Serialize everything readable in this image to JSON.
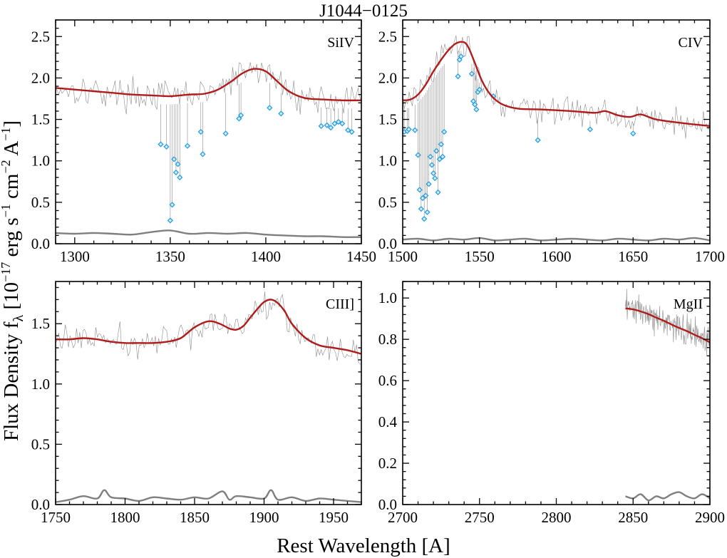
{
  "title": "J1044−0125",
  "xlabel": "Rest Wavelength [A]",
  "ylabel": {
    "main": "Flux Density f",
    "sub": "λ",
    "bracket": " [10",
    "exp1": "−17",
    "unit1": " erg s",
    "exp2": "−1",
    "unit2": " cm",
    "exp3": "−2",
    "unit3": " A",
    "exp4": "−1",
    "close": "]"
  },
  "colors": {
    "raw_spectrum": "#8c8c8c",
    "fit": "#b01c1c",
    "error": "#7f7f7f",
    "masked_points": "#2a9fe0"
  },
  "chart_data": [
    {
      "panel": "SiIV",
      "type": "line",
      "label": "SiIV",
      "xlim": [
        1290,
        1450
      ],
      "ylim": [
        0,
        2.7
      ],
      "xticks": [
        1300,
        1350,
        1400,
        1450
      ],
      "yticks": [
        0.0,
        0.5,
        1.0,
        1.5,
        2.0,
        2.5
      ],
      "xtick_labels": [
        "1300",
        "1350",
        "1400",
        "1450"
      ],
      "ytick_labels": [
        "0.0",
        "0.5",
        "1.0",
        "1.5",
        "2.0",
        "2.5"
      ],
      "fit": {
        "x": [
          1290,
          1300,
          1310,
          1320,
          1330,
          1340,
          1350,
          1360,
          1368,
          1375,
          1382,
          1388,
          1394,
          1400,
          1406,
          1412,
          1420,
          1430,
          1440,
          1450
        ],
        "y": [
          1.88,
          1.86,
          1.84,
          1.82,
          1.8,
          1.79,
          1.78,
          1.8,
          1.81,
          1.86,
          1.96,
          2.06,
          2.11,
          2.08,
          1.96,
          1.84,
          1.76,
          1.74,
          1.73,
          1.73
        ]
      },
      "error": {
        "x": [
          1290,
          1300,
          1310,
          1320,
          1330,
          1340,
          1350,
          1360,
          1370,
          1380,
          1390,
          1400,
          1410,
          1420,
          1430,
          1440,
          1450
        ],
        "y": [
          0.13,
          0.12,
          0.13,
          0.12,
          0.11,
          0.14,
          0.16,
          0.12,
          0.13,
          0.12,
          0.13,
          0.11,
          0.1,
          0.09,
          0.09,
          0.08,
          0.08
        ]
      },
      "masked_points": {
        "x": [
          1345,
          1348,
          1350,
          1351,
          1352,
          1353,
          1354,
          1355,
          1359,
          1366,
          1367,
          1379,
          1386,
          1387,
          1402,
          1408,
          1429,
          1432,
          1434,
          1436,
          1438,
          1440,
          1443,
          1445
        ],
        "y": [
          1.2,
          1.17,
          0.28,
          0.47,
          1.02,
          0.86,
          0.96,
          0.8,
          1.18,
          1.35,
          1.08,
          1.33,
          1.51,
          1.55,
          1.64,
          1.57,
          1.42,
          1.43,
          1.4,
          1.45,
          1.47,
          1.45,
          1.37,
          1.35
        ]
      }
    },
    {
      "panel": "CIV",
      "type": "line",
      "label": "CIV",
      "xlim": [
        1500,
        1700
      ],
      "ylim": [
        0,
        2.7
      ],
      "xticks": [
        1500,
        1550,
        1600,
        1650,
        1700
      ],
      "yticks": [
        0.0,
        0.5,
        1.0,
        1.5,
        2.0,
        2.5
      ],
      "xtick_labels": [
        "1500",
        "1550",
        "1600",
        "1650",
        "1700"
      ],
      "ytick_labels": [
        "0.0",
        "0.5",
        "1.0",
        "1.5",
        "2.0",
        "2.5"
      ],
      "fit": {
        "x": [
          1500,
          1505,
          1510,
          1515,
          1520,
          1525,
          1530,
          1535,
          1540,
          1543,
          1547,
          1552,
          1558,
          1565,
          1575,
          1590,
          1610,
          1625,
          1632,
          1640,
          1648,
          1655,
          1665,
          1680,
          1700
        ],
        "y": [
          1.73,
          1.74,
          1.8,
          1.92,
          2.08,
          2.22,
          2.34,
          2.42,
          2.43,
          2.36,
          2.18,
          1.95,
          1.78,
          1.68,
          1.63,
          1.62,
          1.6,
          1.58,
          1.6,
          1.55,
          1.53,
          1.56,
          1.5,
          1.46,
          1.42
        ]
      },
      "error": {
        "x": [
          1500,
          1510,
          1520,
          1530,
          1540,
          1550,
          1560,
          1570,
          1580,
          1590,
          1600,
          1610,
          1620,
          1630,
          1640,
          1650,
          1660,
          1670,
          1680,
          1690,
          1700
        ],
        "y": [
          0.05,
          0.06,
          0.04,
          0.06,
          0.05,
          0.07,
          0.04,
          0.05,
          0.06,
          0.04,
          0.05,
          0.06,
          0.05,
          0.04,
          0.06,
          0.05,
          0.04,
          0.06,
          0.05,
          0.07,
          0.04
        ]
      },
      "masked_points": {
        "x": [
          1501,
          1503,
          1504,
          1508,
          1510,
          1511,
          1512,
          1513,
          1514,
          1515,
          1516,
          1517,
          1518,
          1519,
          1520,
          1521,
          1522,
          1523,
          1524,
          1525,
          1526,
          1527,
          1536,
          1537,
          1538,
          1545,
          1546,
          1547,
          1548,
          1549,
          1550,
          1559,
          1588,
          1622,
          1650
        ],
        "y": [
          1.35,
          1.36,
          1.38,
          1.37,
          1.07,
          0.65,
          0.42,
          0.55,
          0.3,
          0.58,
          0.38,
          0.72,
          1.05,
          0.95,
          0.85,
          0.79,
          1.12,
          0.62,
          1.02,
          1.2,
          1.05,
          1.35,
          2.02,
          2.22,
          2.26,
          2.05,
          1.72,
          1.68,
          1.62,
          1.83,
          1.86,
          1.78,
          1.25,
          1.38,
          1.33
        ]
      }
    },
    {
      "panel": "CIII]",
      "type": "line",
      "label": "CIII]",
      "xlim": [
        1750,
        1970
      ],
      "ylim": [
        0,
        1.85
      ],
      "xticks": [
        1750,
        1800,
        1850,
        1900,
        1950
      ],
      "yticks": [
        0.0,
        0.5,
        1.0,
        1.5
      ],
      "xtick_labels": [
        "1750",
        "1800",
        "1850",
        "1900",
        "1950"
      ],
      "ytick_labels": [
        "0.0",
        "0.5",
        "1.0",
        "1.5"
      ],
      "fit": {
        "x": [
          1750,
          1760,
          1770,
          1780,
          1790,
          1800,
          1810,
          1820,
          1830,
          1840,
          1850,
          1860,
          1868,
          1875,
          1880,
          1885,
          1890,
          1895,
          1900,
          1905,
          1910,
          1915,
          1920,
          1930,
          1940,
          1950,
          1960,
          1970
        ],
        "y": [
          1.37,
          1.37,
          1.38,
          1.37,
          1.35,
          1.34,
          1.34,
          1.34,
          1.35,
          1.38,
          1.47,
          1.52,
          1.5,
          1.46,
          1.45,
          1.48,
          1.55,
          1.62,
          1.68,
          1.7,
          1.67,
          1.6,
          1.5,
          1.38,
          1.32,
          1.3,
          1.28,
          1.25
        ]
      },
      "error": {
        "x": [
          1750,
          1760,
          1770,
          1780,
          1785,
          1790,
          1800,
          1810,
          1820,
          1830,
          1840,
          1850,
          1860,
          1870,
          1875,
          1880,
          1890,
          1900,
          1905,
          1910,
          1920,
          1930,
          1940,
          1950,
          1960,
          1970
        ],
        "y": [
          0.02,
          0.04,
          0.07,
          0.05,
          0.12,
          0.06,
          0.05,
          0.03,
          0.06,
          0.05,
          0.04,
          0.06,
          0.05,
          0.11,
          0.04,
          0.07,
          0.06,
          0.05,
          0.12,
          0.04,
          0.06,
          0.03,
          0.05,
          0.04,
          0.03,
          0.02
        ]
      }
    },
    {
      "panel": "MgII",
      "type": "line",
      "label": "MgII",
      "xlim": [
        2700,
        2900
      ],
      "ylim": [
        0,
        1.08
      ],
      "xticks": [
        2700,
        2750,
        2800,
        2850,
        2900
      ],
      "yticks": [
        0.0,
        0.2,
        0.4,
        0.6,
        0.8,
        1.0
      ],
      "xtick_labels": [
        "2700",
        "2750",
        "2800",
        "2850",
        "2900"
      ],
      "ytick_labels": [
        "0.0",
        "0.2",
        "0.4",
        "0.6",
        "0.8",
        "1.0"
      ],
      "fit": {
        "x": [
          2845,
          2850,
          2855,
          2860,
          2865,
          2870,
          2875,
          2880,
          2885,
          2890,
          2895,
          2900
        ],
        "y": [
          0.95,
          0.945,
          0.935,
          0.922,
          0.905,
          0.89,
          0.872,
          0.855,
          0.84,
          0.822,
          0.805,
          0.785
        ]
      },
      "error": {
        "x": [
          2845,
          2850,
          2855,
          2860,
          2865,
          2870,
          2875,
          2880,
          2885,
          2890,
          2895,
          2900
        ],
        "y": [
          0.04,
          0.03,
          0.05,
          0.02,
          0.04,
          0.03,
          0.05,
          0.06,
          0.04,
          0.03,
          0.05,
          0.03
        ]
      }
    }
  ]
}
